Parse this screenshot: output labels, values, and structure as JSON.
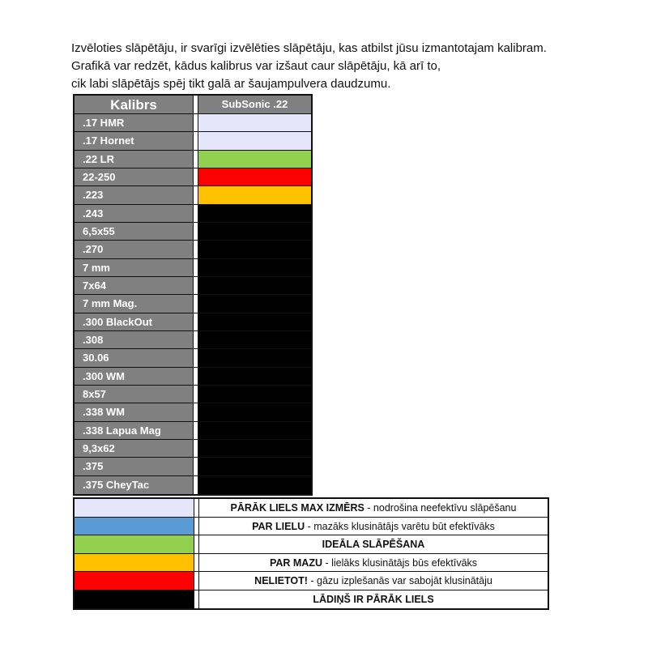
{
  "intro": [
    "Izvēloties slāpētāju, ir svarīgi izvēlēties slāpētāju, kas atbilst jūsu izmantotajam kalibram.",
    "Grafikā var redzēt, kādus kalibrus var izšaut caur slāpētāju, kā arī to,",
    "cik labi slāpētājs spēj tikt galā ar šaujampulvera daudzumu."
  ],
  "table": {
    "header": {
      "caliber": "Kalibrs",
      "product": "SubSonic .22"
    },
    "rows": [
      {
        "caliber": ".17 HMR",
        "color": "#e6e6fa"
      },
      {
        "caliber": ".17 Hornet",
        "color": "#e6e6fa"
      },
      {
        "caliber": ".22 LR",
        "color": "#92d050"
      },
      {
        "caliber": "22-250",
        "color": "#ff0000"
      },
      {
        "caliber": ".223",
        "color": "#ffc000"
      },
      {
        "caliber": ".243",
        "color": "#000000"
      },
      {
        "caliber": "6,5x55",
        "color": "#000000"
      },
      {
        "caliber": ".270",
        "color": "#000000"
      },
      {
        "caliber": "7 mm",
        "color": "#000000"
      },
      {
        "caliber": "7x64",
        "color": "#000000"
      },
      {
        "caliber": "7 mm Mag.",
        "color": "#000000"
      },
      {
        "caliber": ".300 BlackOut",
        "color": "#000000"
      },
      {
        "caliber": ".308",
        "color": "#000000"
      },
      {
        "caliber": "30.06",
        "color": "#000000"
      },
      {
        "caliber": ".300 WM",
        "color": "#000000"
      },
      {
        "caliber": "8x57",
        "color": "#000000"
      },
      {
        "caliber": ".338 WM",
        "color": "#000000"
      },
      {
        "caliber": ".338 Lapua Mag",
        "color": "#000000"
      },
      {
        "caliber": "9,3x62",
        "color": "#000000"
      },
      {
        "caliber": ".375",
        "color": "#000000"
      },
      {
        "caliber": ".375 CheyTac",
        "color": "#000000"
      }
    ]
  },
  "legend": [
    {
      "color": "#e6e6fa",
      "bold": "PĀRĀK LIELS MAX IZMĒRS",
      "text": " - nodrošina neefektīvu slāpēšanu"
    },
    {
      "color": "#5b9bd5",
      "bold": "PAR LIELU",
      "text": " - mazāks klusinātājs varētu būt efektīvāks"
    },
    {
      "color": "#92d050",
      "bold": "IDEĀLA SLĀPĒŠANA",
      "text": ""
    },
    {
      "color": "#ffc000",
      "bold": "PAR MAZU",
      "text": " - lielāks klusinātājs būs efektīvāks"
    },
    {
      "color": "#ff0000",
      "bold": "NELIETOT!",
      "text": " - gāzu izplešanās var sabojāt klusinātāju"
    },
    {
      "color": "#000000",
      "bold": "LĀDIŅŠ IR PĀRĀK LIELS",
      "text": ""
    }
  ]
}
